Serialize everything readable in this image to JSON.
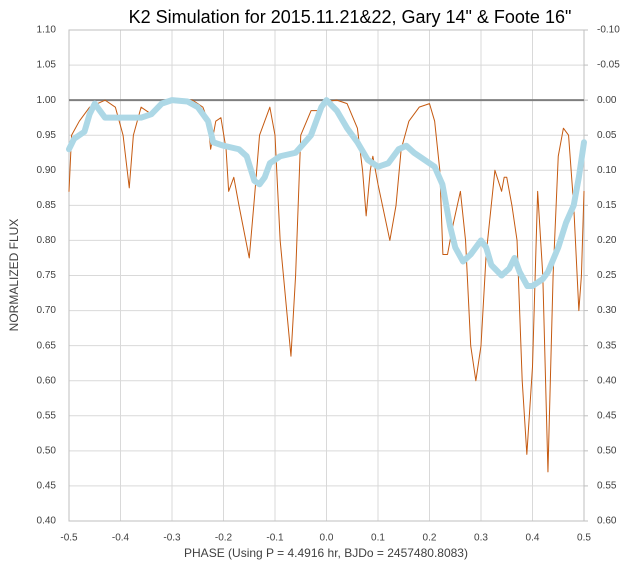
{
  "chart_data": {
    "type": "line",
    "title": "K2 Simulation for 2015.11.21&22, Gary 14\" & Foote 16\"",
    "xlabel": "PHASE (Using P = 4.4916 hr, BJDo = 2457480.8083)",
    "ylabel": "NORMALIZED FLUX",
    "xlim": [
      -0.5,
      0.5
    ],
    "xticks": [
      -0.5,
      -0.4,
      -0.3,
      -0.2,
      -0.1,
      {
        "value": 0,
        "label": "0.0"
      },
      0.1,
      0.2,
      0.3,
      0.4,
      0.5
    ],
    "ylim": [
      0.4,
      1.1
    ],
    "yticks": [
      {
        "value": 0.4,
        "label": "0.40"
      },
      {
        "value": 0.45,
        "label": "0.45"
      },
      {
        "value": 0.5,
        "label": "0.50"
      },
      {
        "value": 0.55,
        "label": "0.55"
      },
      {
        "value": 0.6,
        "label": "0.60"
      },
      {
        "value": 0.65,
        "label": "0.65"
      },
      {
        "value": 0.7,
        "label": "0.70"
      },
      {
        "value": 0.75,
        "label": "0.75"
      },
      {
        "value": 0.8,
        "label": "0.80"
      },
      {
        "value": 0.85,
        "label": "0.85"
      },
      {
        "value": 0.9,
        "label": "0.90"
      },
      {
        "value": 0.95,
        "label": "0.95"
      },
      {
        "value": 1.0,
        "label": "1.00"
      },
      {
        "value": 1.05,
        "label": "1.05"
      },
      {
        "value": 1.1,
        "label": "1.10"
      }
    ],
    "y2lim": [
      0.6,
      -0.1
    ],
    "y2ticks": [
      {
        "value": -0.1,
        "label": "-0.10"
      },
      {
        "value": -0.05,
        "label": "-0.05"
      },
      {
        "value": 0,
        "label": "0.00"
      },
      {
        "value": 0.05,
        "label": "0.05"
      },
      {
        "value": 0.1,
        "label": "0.10"
      },
      {
        "value": 0.15,
        "label": "0.15"
      },
      {
        "value": 0.2,
        "label": "0.20"
      },
      {
        "value": 0.25,
        "label": "0.25"
      },
      {
        "value": 0.3,
        "label": "0.30"
      },
      {
        "value": 0.35,
        "label": "0.35"
      },
      {
        "value": 0.4,
        "label": "0.40"
      },
      {
        "value": 0.45,
        "label": "0.45"
      },
      {
        "value": 0.5,
        "label": "0.50"
      },
      {
        "value": 0.55,
        "label": "0.55"
      },
      {
        "value": 0.6,
        "label": "0.60"
      }
    ],
    "grid": true,
    "reference_line": 1.0,
    "reference_color": "#7f7f7f",
    "series": [
      {
        "color": "#c55a11",
        "line_width": 1,
        "x": [
          -0.5,
          -0.495,
          -0.48,
          -0.46,
          -0.43,
          -0.41,
          -0.395,
          -0.383,
          -0.375,
          -0.36,
          -0.34,
          -0.32,
          -0.3,
          -0.26,
          -0.24,
          -0.23,
          -0.225,
          -0.215,
          -0.205,
          -0.195,
          -0.19,
          -0.18,
          -0.17,
          -0.15,
          -0.14,
          -0.13,
          -0.11,
          -0.1,
          -0.09,
          -0.069,
          -0.06,
          -0.05,
          -0.03,
          -0.01,
          0.0,
          0.02,
          0.04,
          0.06,
          0.07,
          0.077,
          0.085,
          0.09,
          0.1,
          0.123,
          0.135,
          0.145,
          0.16,
          0.18,
          0.2,
          0.21,
          0.22,
          0.226,
          0.235,
          0.245,
          0.26,
          0.27,
          0.28,
          0.29,
          0.3,
          0.31,
          0.327,
          0.34,
          0.345,
          0.35,
          0.36,
          0.37,
          0.38,
          0.389,
          0.4,
          0.41,
          0.42,
          0.43,
          0.44,
          0.45,
          0.46,
          0.47,
          0.48,
          0.49,
          0.495,
          0.5
        ],
        "values": [
          0.87,
          0.95,
          0.97,
          0.99,
          1.0,
          0.99,
          0.95,
          0.875,
          0.95,
          0.99,
          0.98,
          0.995,
          1.0,
          1.0,
          0.99,
          0.97,
          0.93,
          0.97,
          0.975,
          0.93,
          0.87,
          0.89,
          0.85,
          0.775,
          0.86,
          0.95,
          0.99,
          0.95,
          0.8,
          0.635,
          0.75,
          0.95,
          0.985,
          0.985,
          0.998,
          1.0,
          0.995,
          0.96,
          0.9,
          0.835,
          0.9,
          0.92,
          0.88,
          0.8,
          0.85,
          0.93,
          0.97,
          0.99,
          0.995,
          0.97,
          0.9,
          0.78,
          0.78,
          0.82,
          0.87,
          0.8,
          0.65,
          0.6,
          0.65,
          0.78,
          0.9,
          0.87,
          0.89,
          0.89,
          0.85,
          0.8,
          0.6,
          0.495,
          0.62,
          0.87,
          0.75,
          0.47,
          0.75,
          0.92,
          0.96,
          0.95,
          0.85,
          0.7,
          0.75,
          0.87
        ]
      },
      {
        "color": "#add8e6",
        "line_width": 6,
        "x": [
          -0.5,
          -0.49,
          -0.47,
          -0.46,
          -0.45,
          -0.44,
          -0.43,
          -0.4,
          -0.36,
          -0.34,
          -0.32,
          -0.3,
          -0.27,
          -0.25,
          -0.23,
          -0.22,
          -0.2,
          -0.17,
          -0.155,
          -0.14,
          -0.13,
          -0.12,
          -0.11,
          -0.09,
          -0.06,
          -0.03,
          -0.01,
          0.0,
          0.02,
          0.04,
          0.06,
          0.08,
          0.1,
          0.12,
          0.14,
          0.155,
          0.17,
          0.19,
          0.21,
          0.225,
          0.24,
          0.25,
          0.265,
          0.28,
          0.3,
          0.31,
          0.32,
          0.34,
          0.355,
          0.365,
          0.375,
          0.39,
          0.4,
          0.42,
          0.43,
          0.45,
          0.465,
          0.48,
          0.49,
          0.5
        ],
        "values": [
          0.93,
          0.945,
          0.955,
          0.98,
          0.995,
          0.985,
          0.975,
          0.975,
          0.975,
          0.98,
          0.995,
          1.0,
          0.998,
          0.99,
          0.97,
          0.94,
          0.935,
          0.93,
          0.92,
          0.885,
          0.88,
          0.89,
          0.91,
          0.92,
          0.925,
          0.95,
          0.99,
          1.0,
          0.985,
          0.96,
          0.94,
          0.915,
          0.905,
          0.91,
          0.93,
          0.935,
          0.925,
          0.915,
          0.905,
          0.88,
          0.82,
          0.79,
          0.77,
          0.78,
          0.8,
          0.79,
          0.765,
          0.75,
          0.76,
          0.775,
          0.755,
          0.735,
          0.735,
          0.745,
          0.755,
          0.79,
          0.825,
          0.85,
          0.89,
          0.94
        ]
      }
    ]
  }
}
